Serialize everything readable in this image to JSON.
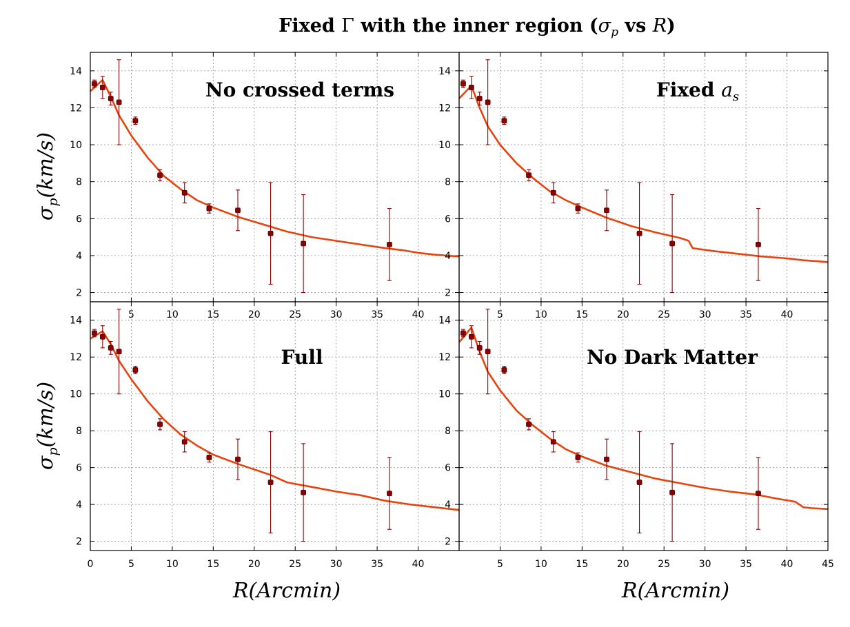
{
  "title": "Fixed Γ with the inner region (σ_p vs R)",
  "title_parts": {
    "lead": "Fixed ",
    "gamma": "Γ",
    "mid": " with the inner region (",
    "sigma": "σ",
    "sub": "p",
    "vs": " vs ",
    "r": "R",
    "close": ")"
  },
  "ylabel": {
    "sigma": "σ",
    "sub": "p",
    "rest": "(km/s)"
  },
  "xlabel": "R(Arcmin)",
  "colors": {
    "model": "#e8430c",
    "data": "#8b0000",
    "grid": "#9a9a9a",
    "axis": "#000000"
  },
  "chart_data": [
    {
      "type": "line",
      "panel": "top-left",
      "label": "No crossed terms",
      "xlim": [
        0,
        45
      ],
      "ylim": [
        1.5,
        15
      ],
      "yticks": [
        2,
        4,
        6,
        8,
        10,
        12,
        14
      ],
      "xticks": [
        5,
        10,
        15,
        20,
        25,
        30,
        35,
        40
      ],
      "grid": true,
      "series": [
        {
          "kind": "model",
          "x": [
            0,
            1.5,
            2.5,
            3.5,
            5,
            7,
            9,
            11,
            13,
            15,
            18,
            21,
            24,
            27,
            30,
            33,
            36,
            38,
            40,
            42,
            45
          ],
          "y": [
            12.9,
            13.5,
            12.6,
            11.6,
            10.5,
            9.3,
            8.3,
            7.6,
            7.0,
            6.6,
            6.1,
            5.7,
            5.3,
            5.0,
            4.8,
            4.6,
            4.4,
            4.3,
            4.15,
            4.05,
            3.95
          ]
        },
        {
          "kind": "data",
          "x": [
            0.5,
            1.5,
            2.5,
            3.5,
            5.5,
            8.5,
            11.5,
            14.5,
            18,
            22,
            26,
            36.5
          ],
          "y": [
            13.3,
            13.1,
            12.5,
            12.3,
            11.3,
            8.35,
            7.4,
            6.55,
            6.45,
            5.2,
            4.65,
            4.6
          ],
          "err": [
            0.2,
            0.6,
            0.35,
            2.3,
            0.2,
            0.3,
            0.55,
            0.25,
            1.1,
            2.75,
            2.65,
            1.95
          ]
        }
      ]
    },
    {
      "type": "line",
      "panel": "top-right",
      "label_text": "Fixed ",
      "label_math": "a",
      "label_sub": "s",
      "xlim": [
        0,
        45
      ],
      "ylim": [
        1.5,
        15
      ],
      "yticks": [
        2,
        4,
        6,
        8,
        10,
        12,
        14
      ],
      "xticks": [
        5,
        10,
        15,
        20,
        25,
        30,
        35,
        40
      ],
      "grid": true,
      "series": [
        {
          "kind": "model",
          "x": [
            0,
            1.5,
            2.5,
            3.5,
            5,
            7,
            9,
            11,
            13,
            15,
            18,
            21,
            24,
            27,
            28,
            28.5,
            31,
            34,
            37,
            40,
            42,
            45
          ],
          "y": [
            12.5,
            13.2,
            12.0,
            11.0,
            10.0,
            9.0,
            8.2,
            7.5,
            7.0,
            6.6,
            6.05,
            5.6,
            5.25,
            4.95,
            4.8,
            4.4,
            4.25,
            4.1,
            3.95,
            3.85,
            3.75,
            3.65
          ]
        },
        {
          "kind": "data",
          "x": [
            0.5,
            1.5,
            2.5,
            3.5,
            5.5,
            8.5,
            11.5,
            14.5,
            18,
            22,
            26,
            36.5
          ],
          "y": [
            13.3,
            13.1,
            12.5,
            12.3,
            11.3,
            8.35,
            7.4,
            6.55,
            6.45,
            5.2,
            4.65,
            4.6
          ],
          "err": [
            0.2,
            0.6,
            0.35,
            2.3,
            0.2,
            0.3,
            0.55,
            0.25,
            1.1,
            2.75,
            2.65,
            1.95
          ]
        }
      ]
    },
    {
      "type": "line",
      "panel": "bottom-left",
      "label": "Full",
      "xlim": [
        0,
        45
      ],
      "ylim": [
        1.5,
        15
      ],
      "yticks": [
        2,
        4,
        6,
        8,
        10,
        12,
        14
      ],
      "xticks": [
        0,
        5,
        10,
        15,
        20,
        25,
        30,
        35,
        40
      ],
      "grid": true,
      "series": [
        {
          "kind": "model",
          "x": [
            0,
            1.5,
            2.5,
            3.5,
            5,
            7,
            9,
            11,
            13,
            15,
            18,
            20,
            22,
            24,
            27,
            30,
            33,
            36,
            39,
            42,
            45
          ],
          "y": [
            13.0,
            13.4,
            12.7,
            11.8,
            10.8,
            9.6,
            8.6,
            7.8,
            7.2,
            6.7,
            6.2,
            5.9,
            5.6,
            5.2,
            4.95,
            4.7,
            4.5,
            4.2,
            4.0,
            3.85,
            3.7
          ]
        },
        {
          "kind": "data",
          "x": [
            0.5,
            1.5,
            2.5,
            3.5,
            5.5,
            8.5,
            11.5,
            14.5,
            18,
            22,
            26,
            36.5
          ],
          "y": [
            13.3,
            13.1,
            12.5,
            12.3,
            11.3,
            8.35,
            7.4,
            6.55,
            6.45,
            5.2,
            4.65,
            4.6
          ],
          "err": [
            0.2,
            0.6,
            0.35,
            2.3,
            0.2,
            0.3,
            0.55,
            0.25,
            1.1,
            2.75,
            2.65,
            1.95
          ]
        }
      ]
    },
    {
      "type": "line",
      "panel": "bottom-right",
      "label": "No Dark Matter",
      "xlim": [
        0,
        45
      ],
      "ylim": [
        1.5,
        15
      ],
      "yticks": [
        2,
        4,
        6,
        8,
        10,
        12,
        14
      ],
      "xticks": [
        5,
        10,
        15,
        20,
        25,
        30,
        35,
        40,
        45
      ],
      "grid": true,
      "series": [
        {
          "kind": "model",
          "x": [
            0,
            1.5,
            2.5,
            3.5,
            5,
            7,
            9,
            11,
            13,
            15,
            18,
            21,
            24,
            27,
            30,
            33,
            36,
            39,
            41,
            42,
            43,
            45
          ],
          "y": [
            12.8,
            13.6,
            12.3,
            11.2,
            10.2,
            9.1,
            8.3,
            7.6,
            7.0,
            6.6,
            6.1,
            5.75,
            5.4,
            5.15,
            4.9,
            4.7,
            4.55,
            4.3,
            4.15,
            3.85,
            3.8,
            3.75
          ]
        },
        {
          "kind": "data",
          "x": [
            0.5,
            1.5,
            2.5,
            3.5,
            5.5,
            8.5,
            11.5,
            14.5,
            18,
            22,
            26,
            36.5
          ],
          "y": [
            13.3,
            13.1,
            12.5,
            12.3,
            11.3,
            8.35,
            7.4,
            6.55,
            6.45,
            5.2,
            4.65,
            4.6
          ],
          "err": [
            0.2,
            0.6,
            0.35,
            2.3,
            0.2,
            0.3,
            0.55,
            0.25,
            1.1,
            2.75,
            2.65,
            1.95
          ]
        }
      ]
    }
  ]
}
